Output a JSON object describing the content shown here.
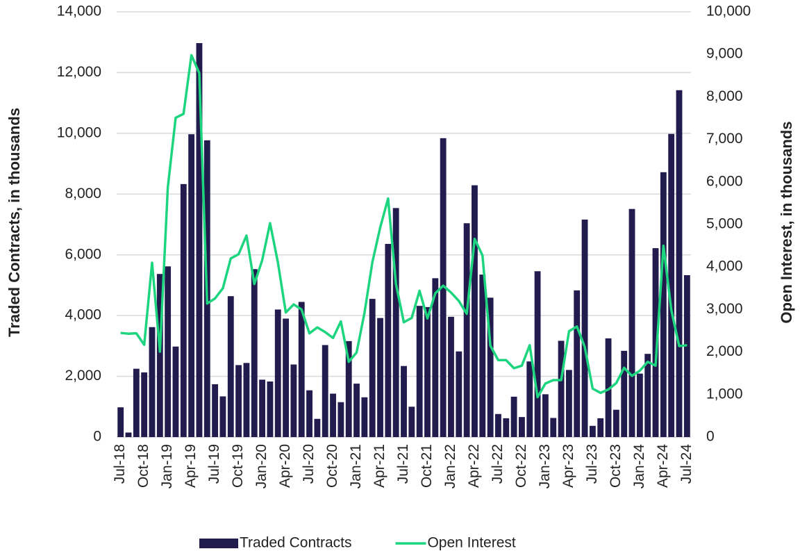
{
  "chart_data": {
    "type": "bar_line",
    "categories": [
      "Jul-18",
      null,
      null,
      "Oct-18",
      null,
      null,
      "Jan-19",
      null,
      null,
      "Apr-19",
      null,
      null,
      "Jul-19",
      null,
      null,
      "Oct-19",
      null,
      null,
      "Jan-20",
      null,
      null,
      "Apr-20",
      null,
      null,
      "Jul-20",
      null,
      null,
      "Oct-20",
      null,
      null,
      "Jan-21",
      null,
      null,
      "Apr-21",
      null,
      null,
      "Jul-21",
      null,
      null,
      "Oct-21",
      null,
      null,
      "Jan-22",
      null,
      null,
      "Apr-22",
      null,
      null,
      "Jul-22",
      null,
      null,
      "Oct-22",
      null,
      null,
      "Jan-23",
      null,
      null,
      "Apr-23",
      null,
      null,
      "Jul-23",
      null,
      null,
      "Oct-23",
      null,
      null,
      "Jan-24",
      null,
      null,
      "Apr-24",
      null,
      null,
      "Jul-24"
    ],
    "series": [
      {
        "name": "Traded Contracts",
        "type": "bar",
        "color": "#221c4e",
        "values": [
          980,
          150,
          2250,
          2130,
          3620,
          5370,
          5620,
          2980,
          8330,
          9970,
          12970,
          9770,
          1740,
          1340,
          4640,
          2370,
          2440,
          5530,
          1890,
          1830,
          4200,
          3900,
          2390,
          4450,
          1540,
          600,
          3030,
          1430,
          1150,
          3160,
          1760,
          1310,
          4550,
          3920,
          6360,
          7540,
          2340,
          1000,
          4320,
          4280,
          5230,
          9840,
          3960,
          2820,
          7040,
          8290,
          5350,
          4590,
          760,
          620,
          1330,
          660,
          2490,
          5460,
          1410,
          630,
          3170,
          2210,
          4830,
          7160,
          370,
          620,
          3250,
          900,
          2840,
          7510,
          2090,
          2740,
          6220,
          8720,
          9980,
          11420,
          5330
        ]
      },
      {
        "name": "Open Interest",
        "type": "line",
        "axis": "y2",
        "color": "#1ed57f",
        "values": [
          2450,
          2430,
          2440,
          2170,
          4100,
          2010,
          5870,
          7510,
          7600,
          8980,
          8560,
          3140,
          3260,
          3500,
          4200,
          4300,
          4740,
          3600,
          4160,
          5030,
          4100,
          2930,
          3120,
          3000,
          2440,
          2580,
          2470,
          2330,
          2720,
          1770,
          1990,
          2920,
          4110,
          4930,
          5610,
          3600,
          2700,
          2800,
          3440,
          2790,
          3380,
          3560,
          3400,
          3200,
          2900,
          4660,
          4270,
          2150,
          1810,
          1810,
          1620,
          1680,
          2160,
          940,
          1260,
          1340,
          1340,
          2490,
          2600,
          2120,
          1140,
          1040,
          1120,
          1270,
          1630,
          1440,
          1560,
          1770,
          1680,
          4500,
          2990,
          2140,
          2160
        ]
      }
    ],
    "ylabel": "Traded Contracts, in thousands",
    "y2label": "Open Interest, in thousands",
    "ylim": [
      0,
      14000
    ],
    "yticks": [
      0,
      {
        "value": 2000,
        "label": "2,000"
      },
      {
        "value": 4000,
        "label": "4,000"
      },
      {
        "value": 6000,
        "label": "6,000"
      },
      {
        "value": 8000,
        "label": "8,000"
      },
      {
        "value": 10000,
        "label": "10,000"
      },
      {
        "value": 12000,
        "label": "12,000"
      },
      {
        "value": 14000,
        "label": "14,000"
      }
    ],
    "y2lim": [
      0,
      10000
    ],
    "y2ticks": [
      0,
      {
        "value": 1000,
        "label": "1,000"
      },
      {
        "value": 2000,
        "label": "2,000"
      },
      {
        "value": 3000,
        "label": "3,000"
      },
      {
        "value": 4000,
        "label": "4,000"
      },
      {
        "value": 5000,
        "label": "5,000"
      },
      {
        "value": 6000,
        "label": "6,000"
      },
      {
        "value": 7000,
        "label": "7,000"
      },
      {
        "value": 8000,
        "label": "8,000"
      },
      {
        "value": 9000,
        "label": "9,000"
      },
      {
        "value": 10000,
        "label": "10,000"
      }
    ],
    "grid": true,
    "legend": "bottom"
  }
}
